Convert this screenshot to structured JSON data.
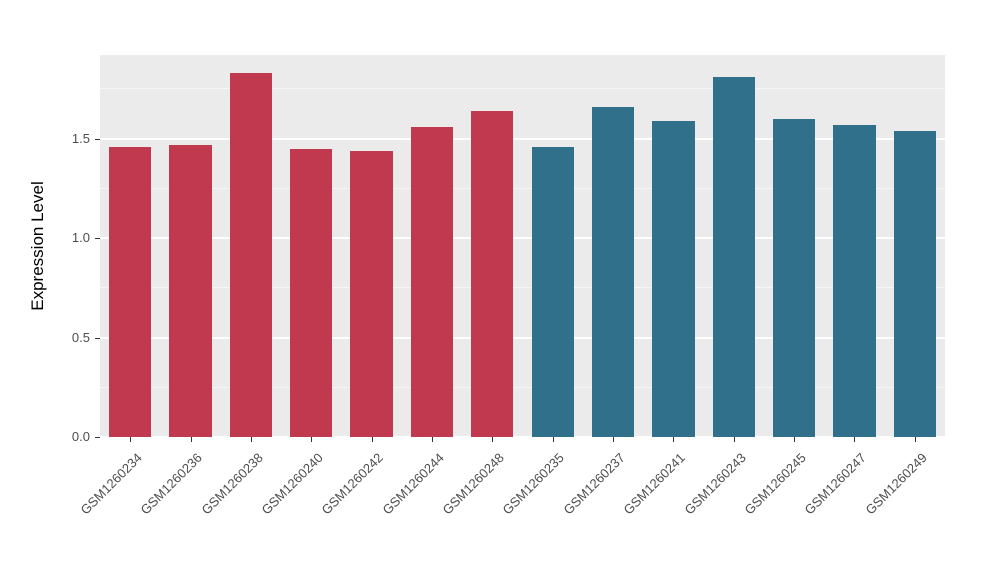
{
  "chart_data": {
    "type": "bar",
    "title": "",
    "xlabel": "",
    "ylabel": "Expression Level",
    "ylim": [
      0,
      1.92
    ],
    "yticks": [
      0.0,
      0.5,
      1.0,
      1.5
    ],
    "yticks_minor": [
      0.25,
      0.75,
      1.25,
      1.75
    ],
    "grid": "on",
    "legend_position": "none",
    "categories": [
      "GSM1260234",
      "GSM1260236",
      "GSM1260238",
      "GSM1260240",
      "GSM1260242",
      "GSM1260244",
      "GSM1260248",
      "GSM1260235",
      "GSM1260237",
      "GSM1260241",
      "GSM1260243",
      "GSM1260245",
      "GSM1260247",
      "GSM1260249"
    ],
    "values": [
      1.46,
      1.47,
      1.83,
      1.45,
      1.44,
      1.56,
      1.64,
      1.46,
      1.66,
      1.59,
      1.81,
      1.6,
      1.57,
      1.54
    ],
    "groups": [
      "A",
      "A",
      "A",
      "A",
      "A",
      "A",
      "A",
      "B",
      "B",
      "B",
      "B",
      "B",
      "B",
      "B"
    ],
    "group_colors": {
      "A": "#C0394F",
      "B": "#31708A"
    },
    "panel_bg": "#EBEBEB",
    "grid_major_color": "#FFFFFF",
    "grid_minor_color": "#FFFFFF",
    "grid_minor_opacity": 0.55,
    "tick_label_color": "#4d4d4d"
  }
}
